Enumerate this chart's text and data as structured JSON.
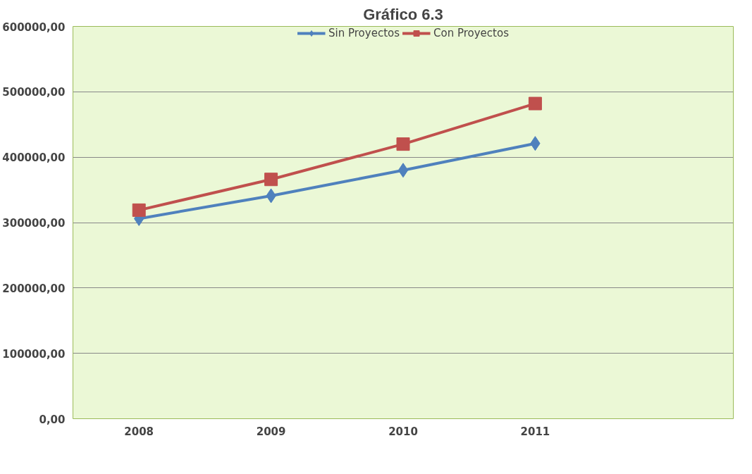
{
  "chart_data": {
    "type": "line",
    "title": "Gráfico 6.3",
    "categories": [
      "2008",
      "2009",
      "2010",
      "2011",
      null
    ],
    "series": [
      {
        "name": "Sin Proyectos",
        "color": "#4f81bd",
        "marker": "diamond",
        "values": [
          306000,
          341000,
          380000,
          421000,
          null
        ]
      },
      {
        "name": "Con Proyectos",
        "color": "#c0504d",
        "marker": "square",
        "values": [
          319000,
          366000,
          420000,
          482000,
          null
        ]
      }
    ],
    "ylim": [
      0,
      600000
    ],
    "yticks": [
      {
        "value": 0,
        "label": "0,00"
      },
      {
        "value": 100000,
        "label": "100000,00"
      },
      {
        "value": 200000,
        "label": "200000,00"
      },
      {
        "value": 300000,
        "label": "300000,00"
      },
      {
        "value": 400000,
        "label": "400000,00"
      },
      {
        "value": 500000,
        "label": "500000,00"
      },
      {
        "value": 600000,
        "label": "600000,00"
      }
    ],
    "grid": "y",
    "legend": "top",
    "line_style": "solid"
  }
}
